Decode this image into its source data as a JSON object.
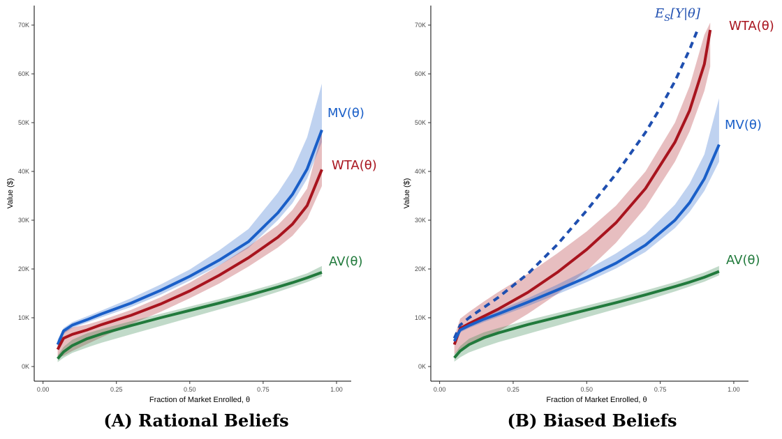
{
  "colors": {
    "mv": "#1a5fc8",
    "wta": "#a8141e",
    "av": "#217a3c",
    "es": "#1f4fb0"
  },
  "chart_data": [
    {
      "type": "line",
      "caption": "(A) Rational Beliefs",
      "xlabel": "Fraction of Market Enrolled, θ",
      "ylabel": "Value ($)",
      "xlim": [
        -0.03,
        1.05
      ],
      "ylim": [
        -3000,
        74000
      ],
      "x_ticks": [
        0.0,
        0.25,
        0.5,
        0.75,
        1.0
      ],
      "x_tick_labels": [
        "0.00",
        "0.25",
        "0.50",
        "0.75",
        "1.00"
      ],
      "y_ticks": [
        0,
        10000,
        20000,
        30000,
        40000,
        50000,
        60000,
        70000
      ],
      "y_tick_labels": [
        "0K",
        "10K",
        "20K",
        "30K",
        "40K",
        "50K",
        "60K",
        "70K"
      ],
      "grid": false,
      "series": [
        {
          "name": "MV(θ)",
          "color_key": "mv",
          "dashed": false,
          "x": [
            0.05,
            0.07,
            0.1,
            0.15,
            0.2,
            0.3,
            0.4,
            0.5,
            0.6,
            0.7,
            0.8,
            0.85,
            0.9,
            0.95
          ],
          "values": [
            4500,
            7300,
            8500,
            9600,
            10800,
            13000,
            15600,
            18500,
            21800,
            25600,
            31500,
            35300,
            40500,
            48500
          ],
          "band_low": [
            4000,
            6700,
            7900,
            9000,
            10100,
            12200,
            14700,
            17600,
            20700,
            24300,
            30000,
            33500,
            38500,
            46000
          ],
          "band_high": [
            5500,
            7900,
            9100,
            10300,
            11500,
            14000,
            16800,
            19900,
            23800,
            28200,
            35600,
            40200,
            47000,
            58000
          ]
        },
        {
          "name": "WTA(θ)",
          "color_key": "wta",
          "dashed": false,
          "x": [
            0.05,
            0.07,
            0.1,
            0.15,
            0.2,
            0.3,
            0.4,
            0.5,
            0.6,
            0.7,
            0.8,
            0.85,
            0.9,
            0.95
          ],
          "values": [
            3500,
            5800,
            6600,
            7500,
            8600,
            10500,
            12800,
            15500,
            18700,
            22300,
            26500,
            29200,
            33000,
            40400
          ],
          "band_low": [
            1800,
            2200,
            3200,
            4600,
            6000,
            8700,
            11200,
            14000,
            17000,
            20500,
            24400,
            26800,
            30300,
            37000
          ],
          "band_high": [
            5000,
            7200,
            8000,
            8600,
            9500,
            11600,
            14200,
            17200,
            20700,
            24600,
            29000,
            32100,
            36500,
            48000
          ]
        },
        {
          "name": "AV(θ)",
          "color_key": "av",
          "dashed": false,
          "x": [
            0.05,
            0.07,
            0.1,
            0.15,
            0.2,
            0.3,
            0.4,
            0.5,
            0.6,
            0.7,
            0.8,
            0.85,
            0.9,
            0.95
          ],
          "values": [
            1600,
            3000,
            4300,
            5700,
            6700,
            8400,
            10000,
            11500,
            13000,
            14600,
            16300,
            17200,
            18200,
            19300
          ],
          "band_low": [
            900,
            1800,
            2800,
            3900,
            4900,
            6600,
            8300,
            10000,
            11700,
            13400,
            15300,
            16300,
            17300,
            18500
          ],
          "band_high": [
            2300,
            4000,
            5500,
            6800,
            7700,
            9300,
            10800,
            12300,
            13800,
            15400,
            17100,
            18100,
            19100,
            20600
          ]
        }
      ]
    },
    {
      "type": "line",
      "caption": "(B) Biased Beliefs",
      "xlabel": "Fraction of Market Enrolled, θ",
      "ylabel": "Value ($)",
      "xlim": [
        -0.03,
        1.05
      ],
      "ylim": [
        -3000,
        74000
      ],
      "x_ticks": [
        0.0,
        0.25,
        0.5,
        0.75,
        1.0
      ],
      "x_tick_labels": [
        "0.00",
        "0.25",
        "0.50",
        "0.75",
        "1.00"
      ],
      "y_ticks": [
        0,
        10000,
        20000,
        30000,
        40000,
        50000,
        60000,
        70000
      ],
      "y_tick_labels": [
        "0K",
        "10K",
        "20K",
        "30K",
        "40K",
        "50K",
        "60K",
        "70K"
      ],
      "grid": false,
      "series": [
        {
          "name": "E_S[Y|θ]",
          "color_key": "es",
          "dashed": true,
          "x": [
            0.05,
            0.07,
            0.1,
            0.2,
            0.3,
            0.4,
            0.5,
            0.6,
            0.7,
            0.75,
            0.8,
            0.85,
            0.88
          ],
          "values": [
            5800,
            8500,
            10000,
            14200,
            19000,
            25000,
            32000,
            39500,
            48000,
            53000,
            58500,
            65000,
            69500
          ]
        },
        {
          "name": "WTA(θ)",
          "color_key": "wta",
          "dashed": false,
          "x": [
            0.05,
            0.07,
            0.1,
            0.15,
            0.2,
            0.3,
            0.4,
            0.5,
            0.6,
            0.7,
            0.8,
            0.85,
            0.9,
            0.92
          ],
          "values": [
            4500,
            7800,
            8800,
            10300,
            11800,
            15200,
            19300,
            24000,
            29500,
            36500,
            46000,
            52500,
            62000,
            69000
          ],
          "band_low": [
            2500,
            3600,
            4200,
            5500,
            7200,
            10800,
            14900,
            19600,
            25400,
            32600,
            42000,
            48200,
            56500,
            61500
          ],
          "band_high": [
            6000,
            9800,
            11200,
            13300,
            15300,
            19000,
            23200,
            27700,
            33000,
            40000,
            50000,
            57500,
            68000,
            70500
          ]
        },
        {
          "name": "MV(θ)",
          "color_key": "mv",
          "dashed": false,
          "x": [
            0.05,
            0.07,
            0.1,
            0.15,
            0.2,
            0.3,
            0.4,
            0.5,
            0.6,
            0.7,
            0.8,
            0.85,
            0.9,
            0.95
          ],
          "values": [
            5200,
            7500,
            8400,
            9700,
            10800,
            13200,
            15700,
            18300,
            21200,
            24900,
            30000,
            33600,
            38500,
            45500
          ],
          "band_low": [
            4700,
            7000,
            7900,
            9100,
            10200,
            12400,
            14800,
            17300,
            20100,
            23500,
            28400,
            31700,
            36000,
            42000
          ],
          "band_high": [
            5700,
            8000,
            9000,
            10300,
            11500,
            14000,
            16800,
            19800,
            23200,
            27200,
            33200,
            37500,
            43500,
            55000
          ]
        },
        {
          "name": "AV(θ)",
          "color_key": "av",
          "dashed": false,
          "x": [
            0.05,
            0.07,
            0.1,
            0.15,
            0.2,
            0.3,
            0.4,
            0.5,
            0.6,
            0.7,
            0.8,
            0.85,
            0.9,
            0.95
          ],
          "values": [
            1800,
            3200,
            4500,
            5900,
            6900,
            8600,
            10100,
            11600,
            13100,
            14700,
            16400,
            17300,
            18300,
            19500
          ],
          "band_low": [
            1000,
            1900,
            2900,
            4000,
            5000,
            6700,
            8400,
            10100,
            11800,
            13500,
            15400,
            16400,
            17400,
            18700
          ],
          "band_high": [
            2500,
            4200,
            5700,
            7000,
            7900,
            9500,
            11000,
            12500,
            14000,
            15600,
            17300,
            18300,
            19300,
            20600
          ]
        }
      ]
    }
  ]
}
